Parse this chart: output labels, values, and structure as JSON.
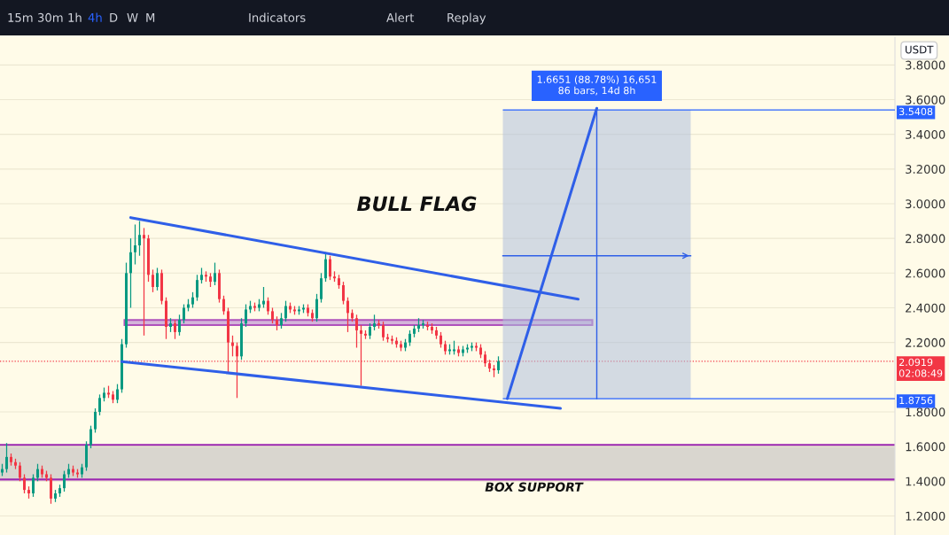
{
  "chart_data": {
    "type": "candlestick",
    "categories": [
      null,
      null,
      null,
      null,
      null,
      null,
      null,
      null,
      null,
      null,
      null,
      null,
      null,
      null,
      null,
      null,
      null,
      null,
      null,
      null,
      null,
      null,
      null,
      null,
      null,
      null,
      null,
      null,
      null,
      null,
      null,
      null,
      null,
      null,
      null,
      null,
      null,
      null,
      null,
      null,
      null,
      null,
      null,
      null,
      null,
      null,
      null,
      null,
      null,
      null,
      null,
      null,
      null,
      null,
      null,
      null,
      null,
      null,
      null,
      null,
      null,
      null,
      null,
      null,
      null,
      null,
      null,
      null,
      null,
      null,
      null,
      null,
      null,
      null,
      null,
      null,
      null,
      null,
      null,
      null,
      null,
      null,
      null,
      null,
      null,
      null,
      null,
      null,
      null,
      null,
      null,
      null,
      null,
      null,
      null,
      null,
      null,
      null,
      null,
      null,
      null,
      null,
      null,
      null,
      null,
      null,
      null,
      null,
      null,
      null,
      null,
      null,
      null,
      null,
      null,
      null,
      null,
      null,
      null,
      null,
      null,
      null,
      null,
      null,
      null,
      null,
      null,
      null,
      null,
      null,
      null,
      null,
      null,
      null,
      null,
      null,
      null,
      null,
      null,
      null,
      null,
      null,
      null,
      null,
      null,
      null,
      null,
      null,
      null,
      null,
      null,
      null,
      null,
      null,
      null,
      null,
      null,
      null,
      null,
      null,
      null,
      null,
      null,
      null,
      null,
      null,
      null,
      null,
      null,
      null,
      null,
      null,
      null,
      null,
      null,
      null,
      null,
      null,
      null,
      null,
      null,
      null,
      null,
      null,
      null,
      null,
      null,
      null,
      null,
      null,
      null,
      null,
      null,
      null,
      null,
      null,
      null,
      null,
      null,
      null,
      null,
      null
    ],
    "ohlc": [
      [
        1.45,
        1.5,
        1.43,
        1.47
      ],
      [
        1.47,
        1.62,
        1.45,
        1.54
      ],
      [
        1.54,
        1.56,
        1.49,
        1.51
      ],
      [
        1.51,
        1.53,
        1.47,
        1.49
      ],
      [
        1.49,
        1.51,
        1.4,
        1.42
      ],
      [
        1.42,
        1.44,
        1.33,
        1.35
      ],
      [
        1.35,
        1.37,
        1.3,
        1.33
      ],
      [
        1.33,
        1.44,
        1.31,
        1.42
      ],
      [
        1.42,
        1.5,
        1.4,
        1.47
      ],
      [
        1.47,
        1.49,
        1.42,
        1.44
      ],
      [
        1.44,
        1.46,
        1.4,
        1.42
      ],
      [
        1.42,
        1.44,
        1.27,
        1.3
      ],
      [
        1.3,
        1.35,
        1.28,
        1.33
      ],
      [
        1.33,
        1.38,
        1.31,
        1.36
      ],
      [
        1.36,
        1.46,
        1.34,
        1.44
      ],
      [
        1.44,
        1.5,
        1.42,
        1.47
      ],
      [
        1.47,
        1.49,
        1.43,
        1.45
      ],
      [
        1.45,
        1.47,
        1.42,
        1.44
      ],
      [
        1.44,
        1.5,
        1.42,
        1.48
      ],
      [
        1.48,
        1.63,
        1.46,
        1.61
      ],
      [
        1.61,
        1.72,
        1.59,
        1.7
      ],
      [
        1.7,
        1.82,
        1.68,
        1.8
      ],
      [
        1.8,
        1.9,
        1.78,
        1.88
      ],
      [
        1.88,
        1.94,
        1.86,
        1.91
      ],
      [
        1.91,
        1.95,
        1.88,
        1.9
      ],
      [
        1.9,
        1.92,
        1.85,
        1.87
      ],
      [
        1.87,
        1.96,
        1.85,
        1.93
      ],
      [
        1.93,
        2.22,
        1.91,
        2.19
      ],
      [
        2.19,
        2.66,
        2.17,
        2.6
      ],
      [
        2.6,
        2.8,
        2.4,
        2.72
      ],
      [
        2.72,
        2.88,
        2.65,
        2.76
      ],
      [
        2.76,
        2.9,
        2.7,
        2.82
      ],
      [
        2.82,
        2.86,
        2.24,
        2.8
      ],
      [
        2.8,
        2.82,
        2.55,
        2.59
      ],
      [
        2.59,
        2.62,
        2.49,
        2.52
      ],
      [
        2.52,
        2.63,
        2.5,
        2.6
      ],
      [
        2.6,
        2.62,
        2.42,
        2.44
      ],
      [
        2.44,
        2.46,
        2.22,
        2.29
      ],
      [
        2.29,
        2.34,
        2.26,
        2.31
      ],
      [
        2.31,
        2.33,
        2.22,
        2.26
      ],
      [
        2.26,
        2.36,
        2.24,
        2.33
      ],
      [
        2.33,
        2.42,
        2.31,
        2.4
      ],
      [
        2.4,
        2.45,
        2.38,
        2.42
      ],
      [
        2.42,
        2.49,
        2.4,
        2.46
      ],
      [
        2.46,
        2.59,
        2.44,
        2.56
      ],
      [
        2.56,
        2.63,
        2.54,
        2.59
      ],
      [
        2.59,
        2.61,
        2.55,
        2.58
      ],
      [
        2.58,
        2.6,
        2.52,
        2.55
      ],
      [
        2.55,
        2.66,
        2.53,
        2.6
      ],
      [
        2.6,
        2.62,
        2.43,
        2.45
      ],
      [
        2.45,
        2.47,
        2.36,
        2.38
      ],
      [
        2.38,
        2.4,
        2.02,
        2.2
      ],
      [
        2.2,
        2.24,
        2.12,
        2.18
      ],
      [
        2.18,
        2.2,
        1.88,
        2.12
      ],
      [
        2.12,
        2.34,
        2.1,
        2.31
      ],
      [
        2.31,
        2.42,
        2.29,
        2.39
      ],
      [
        2.39,
        2.44,
        2.37,
        2.41
      ],
      [
        2.41,
        2.43,
        2.38,
        2.4
      ],
      [
        2.4,
        2.45,
        2.38,
        2.42
      ],
      [
        2.42,
        2.52,
        2.4,
        2.44
      ],
      [
        2.44,
        2.46,
        2.36,
        2.38
      ],
      [
        2.38,
        2.4,
        2.31,
        2.33
      ],
      [
        2.33,
        2.35,
        2.27,
        2.3
      ],
      [
        2.3,
        2.37,
        2.28,
        2.34
      ],
      [
        2.34,
        2.44,
        2.32,
        2.41
      ],
      [
        2.41,
        2.43,
        2.37,
        2.39
      ],
      [
        2.39,
        2.41,
        2.36,
        2.38
      ],
      [
        2.38,
        2.41,
        2.36,
        2.39
      ],
      [
        2.39,
        2.42,
        2.37,
        2.4
      ],
      [
        2.4,
        2.42,
        2.35,
        2.37
      ],
      [
        2.37,
        2.39,
        2.32,
        2.34
      ],
      [
        2.34,
        2.48,
        2.32,
        2.45
      ],
      [
        2.45,
        2.6,
        2.43,
        2.57
      ],
      [
        2.57,
        2.72,
        2.55,
        2.68
      ],
      [
        2.68,
        2.7,
        2.56,
        2.58
      ],
      [
        2.58,
        2.61,
        2.55,
        2.57
      ],
      [
        2.57,
        2.59,
        2.51,
        2.53
      ],
      [
        2.53,
        2.55,
        2.42,
        2.44
      ],
      [
        2.44,
        2.46,
        2.26,
        2.37
      ],
      [
        2.37,
        2.39,
        2.32,
        2.34
      ],
      [
        2.34,
        2.36,
        2.17,
        2.27
      ],
      [
        2.27,
        2.3,
        1.95,
        2.25
      ],
      [
        2.25,
        2.27,
        2.22,
        2.24
      ],
      [
        2.24,
        2.31,
        2.22,
        2.29
      ],
      [
        2.29,
        2.36,
        2.27,
        2.31
      ],
      [
        2.31,
        2.33,
        2.28,
        2.3
      ],
      [
        2.3,
        2.32,
        2.21,
        2.23
      ],
      [
        2.23,
        2.25,
        2.2,
        2.22
      ],
      [
        2.22,
        2.24,
        2.19,
        2.21
      ],
      [
        2.21,
        2.23,
        2.17,
        2.19
      ],
      [
        2.19,
        2.21,
        2.15,
        2.17
      ],
      [
        2.17,
        2.22,
        2.15,
        2.2
      ],
      [
        2.2,
        2.27,
        2.18,
        2.25
      ],
      [
        2.25,
        2.3,
        2.23,
        2.28
      ],
      [
        2.28,
        2.34,
        2.26,
        2.3
      ],
      [
        2.3,
        2.33,
        2.28,
        2.31
      ],
      [
        2.3,
        2.32,
        2.27,
        2.29
      ],
      [
        2.29,
        2.31,
        2.25,
        2.27
      ],
      [
        2.27,
        2.29,
        2.22,
        2.24
      ],
      [
        2.24,
        2.26,
        2.17,
        2.19
      ],
      [
        2.19,
        2.21,
        2.13,
        2.15
      ],
      [
        2.15,
        2.19,
        2.13,
        2.16
      ],
      [
        2.15,
        2.21,
        2.13,
        2.16
      ],
      [
        2.16,
        2.18,
        2.12,
        2.14
      ],
      [
        2.14,
        2.18,
        2.12,
        2.16
      ],
      [
        2.16,
        2.19,
        2.14,
        2.17
      ],
      [
        2.17,
        2.2,
        2.15,
        2.18
      ],
      [
        2.18,
        2.2,
        2.15,
        2.17
      ],
      [
        2.17,
        2.19,
        2.11,
        2.13
      ],
      [
        2.13,
        2.15,
        2.06,
        2.08
      ],
      [
        2.08,
        2.1,
        2.03,
        2.05
      ],
      [
        2.05,
        2.07,
        2.0,
        2.04
      ],
      [
        2.04,
        2.12,
        2.02,
        2.0919
      ],
      null,
      null,
      null,
      null,
      null,
      null,
      null,
      null,
      null,
      null,
      null,
      null,
      null,
      null,
      null,
      null,
      null,
      null,
      null,
      null,
      null,
      null,
      null,
      null,
      null,
      null,
      null,
      null,
      null,
      null,
      null,
      null,
      null,
      null,
      null,
      null,
      null,
      null,
      null,
      null,
      null,
      null,
      null,
      null,
      null,
      null,
      null,
      null,
      null,
      null,
      null,
      null,
      null,
      null,
      null,
      null,
      null,
      null,
      null,
      null,
      null,
      null,
      null,
      null,
      null,
      null,
      null,
      null,
      null,
      null,
      null,
      null,
      null,
      null,
      null,
      null,
      null,
      null,
      null,
      null,
      null,
      null,
      null,
      null,
      null,
      null,
      null,
      null,
      null
    ],
    "series": [
      {
        "type": "line",
        "color": "#2f5fe8",
        "values": [
          null,
          null,
          null,
          null,
          null,
          null,
          null,
          null,
          null,
          null,
          null,
          null,
          null,
          null,
          null,
          null,
          null,
          null,
          null,
          null,
          null,
          null,
          null,
          null,
          null,
          null,
          null,
          null,
          null,
          2.92,
          null,
          null,
          null,
          null,
          null,
          null,
          null,
          null,
          null,
          null,
          null,
          null,
          null,
          null,
          null,
          null,
          null,
          null,
          null,
          null,
          null,
          null,
          null,
          null,
          null,
          null,
          null,
          null,
          null,
          null,
          null,
          null,
          null,
          null,
          null,
          null,
          null,
          null,
          null,
          null,
          null,
          null,
          null,
          null,
          null,
          null,
          null,
          null,
          null,
          null,
          null,
          null,
          null,
          null,
          null,
          null,
          null,
          null,
          null,
          null,
          null,
          null,
          null,
          null,
          null,
          null,
          null,
          null,
          null,
          null,
          null,
          null,
          null,
          null,
          null,
          null,
          null,
          null,
          null,
          null,
          null,
          null,
          null,
          null,
          null,
          null,
          null,
          null,
          null,
          null,
          null,
          null,
          null,
          null,
          null,
          null,
          null,
          null,
          null,
          null,
          2.45,
          null,
          null,
          null,
          null,
          null,
          null,
          null,
          null,
          null,
          null,
          null,
          null,
          null,
          null,
          null,
          null,
          null,
          null,
          null,
          null,
          null,
          null,
          null,
          null,
          null,
          null,
          null,
          null,
          null,
          null,
          null,
          null,
          null,
          null,
          null,
          null,
          null,
          null,
          null,
          null,
          null,
          null,
          null,
          null,
          null,
          null,
          null,
          null,
          null,
          null,
          null,
          null,
          null,
          null,
          null,
          null,
          null,
          null,
          null,
          null,
          null,
          null,
          null,
          null,
          null,
          null,
          null,
          null,
          null,
          null,
          null
        ]
      },
      {
        "type": "line",
        "color": "#2f5fe8",
        "values": [
          null,
          null,
          null,
          null,
          null,
          null,
          null,
          null,
          null,
          null,
          null,
          null,
          null,
          null,
          null,
          null,
          null,
          null,
          null,
          null,
          null,
          null,
          null,
          null,
          null,
          null,
          null,
          2.09,
          null,
          null,
          null,
          null,
          null,
          null,
          null,
          null,
          null,
          null,
          null,
          null,
          null,
          null,
          null,
          null,
          null,
          null,
          null,
          null,
          null,
          null,
          null,
          null,
          null,
          null,
          null,
          null,
          null,
          null,
          null,
          null,
          null,
          null,
          null,
          null,
          null,
          null,
          null,
          null,
          null,
          null,
          null,
          null,
          null,
          null,
          null,
          null,
          null,
          null,
          null,
          null,
          null,
          null,
          null,
          null,
          null,
          null,
          null,
          null,
          null,
          null,
          null,
          null,
          null,
          null,
          null,
          null,
          null,
          null,
          null,
          null,
          null,
          null,
          null,
          null,
          null,
          null,
          null,
          null,
          null,
          null,
          null,
          null,
          null,
          null,
          null,
          null,
          null,
          null,
          null,
          null,
          null,
          null,
          null,
          null,
          null,
          null,
          1.82,
          null,
          null,
          null,
          null,
          null,
          null,
          null,
          null,
          null,
          null,
          null,
          null,
          null,
          null,
          null,
          null,
          null,
          null,
          null,
          null,
          null,
          null,
          null,
          null,
          null,
          null,
          null,
          null,
          null,
          null,
          null,
          null,
          null,
          null,
          null,
          null,
          null,
          null,
          null,
          null,
          null,
          null,
          null,
          null,
          null,
          null,
          null,
          null,
          null,
          null,
          null,
          null,
          null,
          null,
          null,
          null,
          null,
          null,
          null,
          null,
          null,
          null,
          null,
          null,
          null,
          null,
          null,
          null,
          null,
          null,
          null,
          null,
          null,
          null,
          null
        ]
      }
    ],
    "ylim": [
      1.09,
      3.96
    ],
    "yticks": [
      {
        "value": 1.2,
        "label": "1.2000"
      },
      {
        "value": 1.4,
        "label": "1.4000"
      },
      {
        "value": 1.6,
        "label": "1.6000"
      },
      {
        "value": 1.8,
        "label": "1.8000"
      },
      {
        "value": 2.2,
        "label": "2.2000"
      },
      {
        "value": 2.4,
        "label": "2.4000"
      },
      {
        "value": 2.6,
        "label": "2.6000"
      },
      {
        "value": 2.8,
        "label": "2.8000"
      },
      {
        "value": 3.0,
        "label": "3.0000"
      },
      {
        "value": 3.2,
        "label": "3.2000"
      },
      {
        "value": 3.4,
        "label": "3.4000"
      },
      {
        "value": 3.6,
        "label": "3.6000"
      },
      {
        "value": 3.8,
        "label": "3.8000"
      }
    ],
    "tick_labels": "y",
    "grid": true,
    "ref_lines": [
      {
        "axis": "y",
        "value": 2.0919,
        "label": "2.0919\n02:08:49",
        "color": "#f23645",
        "line_style": "dotted"
      },
      {
        "axis": "y",
        "value": 3.5408,
        "label": "3.5408",
        "color": "#2962ff"
      },
      {
        "axis": "y",
        "value": 1.8756,
        "label": "1.8756",
        "color": "#2962ff"
      }
    ],
    "bands": [
      {
        "axis": "y",
        "from": 1.41,
        "to": 1.61,
        "label": "BOX SUPPORT",
        "color": "#d9d6cf"
      }
    ],
    "annotations": [
      "15m",
      "30m",
      "1h",
      "4h",
      "D",
      "W",
      "M",
      "Indicators",
      "Alert",
      "Replay",
      "USDT",
      "BULL FLAG",
      "1.6651 (88.78%) 16,651\n86 bars, 14d 8h"
    ]
  }
}
